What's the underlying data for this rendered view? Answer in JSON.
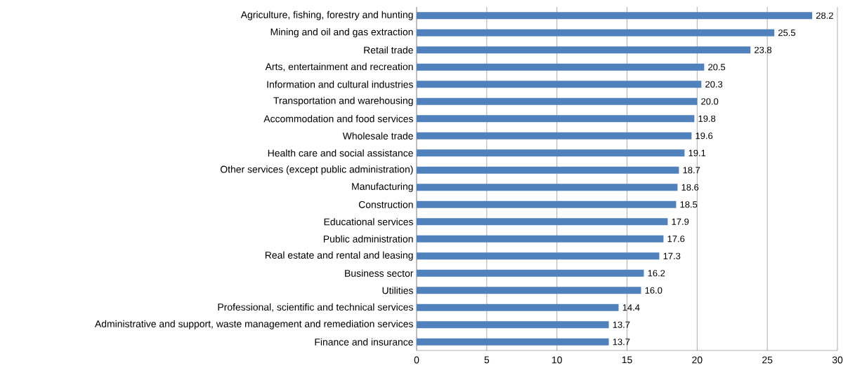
{
  "chart_data": {
    "type": "bar",
    "orientation": "horizontal",
    "categories": [
      "Agriculture, fishing, forestry and hunting",
      "Mining and oil and gas extraction",
      "Retail trade",
      "Arts, entertainment and recreation",
      "Information and cultural industries",
      "Transportation and warehousing",
      "Accommodation and food services",
      "Wholesale trade",
      "Health care and social assistance",
      "Other services (except public administration)",
      "Manufacturing",
      "Construction",
      "Educational services",
      "Public administration",
      "Real estate and rental and leasing",
      "Business sector",
      "Utilities",
      "Professional, scientific and technical services",
      "Administrative and support, waste management and remediation services",
      "Finance and insurance"
    ],
    "values": [
      28.2,
      25.5,
      23.8,
      20.5,
      20.3,
      20.0,
      19.8,
      19.6,
      19.1,
      18.7,
      18.6,
      18.5,
      17.9,
      17.6,
      17.3,
      16.2,
      16.0,
      14.4,
      13.7,
      13.7
    ],
    "value_labels": [
      "28.2",
      "25.5",
      "23.8",
      "20.5",
      "20.3",
      "20.0",
      "19.8",
      "19.6",
      "19.1",
      "18.7",
      "18.6",
      "18.5",
      "17.9",
      "17.6",
      "17.3",
      "16.2",
      "16.0",
      "14.4",
      "13.7",
      "13.7"
    ],
    "color": "#4f81bd",
    "xlim": [
      0,
      30
    ],
    "xticks": [
      0,
      5,
      10,
      15,
      20,
      25,
      30
    ],
    "grid": "x"
  }
}
